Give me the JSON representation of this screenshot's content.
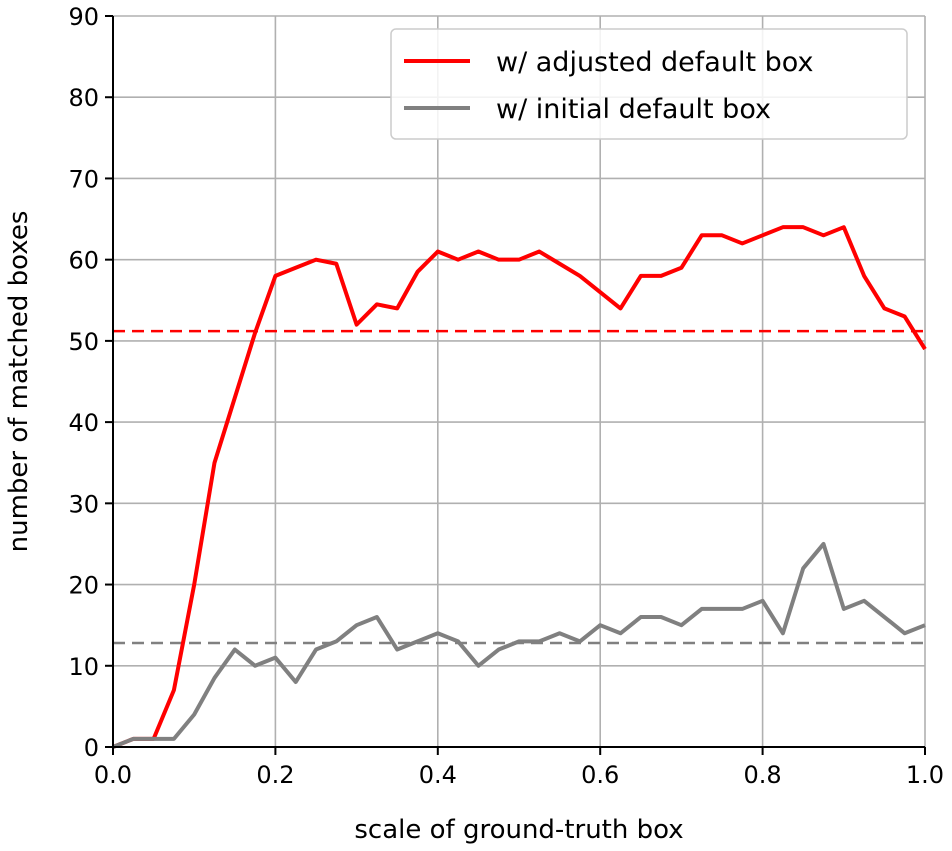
{
  "chart_data": {
    "type": "line",
    "title": "",
    "xlabel": "scale of ground-truth box",
    "ylabel": "number of matched boxes",
    "xlim": [
      0.0,
      1.0
    ],
    "ylim": [
      0,
      90
    ],
    "xticks": [
      0.0,
      0.2,
      0.4,
      0.6,
      0.8,
      1.0
    ],
    "xtick_labels": [
      "0.0",
      "0.2",
      "0.4",
      "0.6",
      "0.8",
      "1.0"
    ],
    "yticks": [
      0,
      10,
      20,
      30,
      40,
      50,
      60,
      70,
      80,
      90
    ],
    "ytick_labels": [
      "0",
      "10",
      "20",
      "30",
      "40",
      "50",
      "60",
      "70",
      "80",
      "90"
    ],
    "grid": true,
    "legend_position": "top-right",
    "x": [
      0.0,
      0.025,
      0.05,
      0.075,
      0.1,
      0.125,
      0.15,
      0.175,
      0.2,
      0.225,
      0.25,
      0.275,
      0.3,
      0.325,
      0.35,
      0.375,
      0.4,
      0.425,
      0.45,
      0.475,
      0.5,
      0.525,
      0.55,
      0.575,
      0.6,
      0.625,
      0.65,
      0.675,
      0.7,
      0.725,
      0.75,
      0.775,
      0.8,
      0.825,
      0.85,
      0.875,
      0.9,
      0.925,
      0.95,
      0.975,
      1.0
    ],
    "series": [
      {
        "name": "w/ adjusted default box",
        "color": "#ff0000",
        "values": [
          0,
          1,
          1,
          7,
          20,
          35,
          43,
          51,
          58,
          59,
          60,
          59.5,
          52,
          54.5,
          54,
          58.5,
          61,
          60,
          61,
          60,
          60,
          61,
          59.5,
          58,
          56,
          54,
          58,
          58,
          59,
          63,
          63,
          62,
          63,
          64,
          64,
          63,
          64,
          58,
          54,
          53,
          49
        ]
      },
      {
        "name": "w/ initial default box",
        "color": "#808080",
        "values": [
          0,
          1,
          1,
          1,
          4,
          8.5,
          12,
          10,
          11,
          8,
          12,
          13,
          15,
          16,
          12,
          13,
          14,
          13,
          10,
          12,
          13,
          13,
          14,
          13,
          15,
          14,
          16,
          16,
          15,
          17,
          17,
          17,
          18,
          14,
          22,
          25,
          17,
          18,
          16,
          14,
          15
        ]
      }
    ],
    "reference_lines": [
      {
        "y": 51.2,
        "color": "#ff0000",
        "style": "dashed"
      },
      {
        "y": 12.8,
        "color": "#808080",
        "style": "dashed"
      }
    ]
  }
}
